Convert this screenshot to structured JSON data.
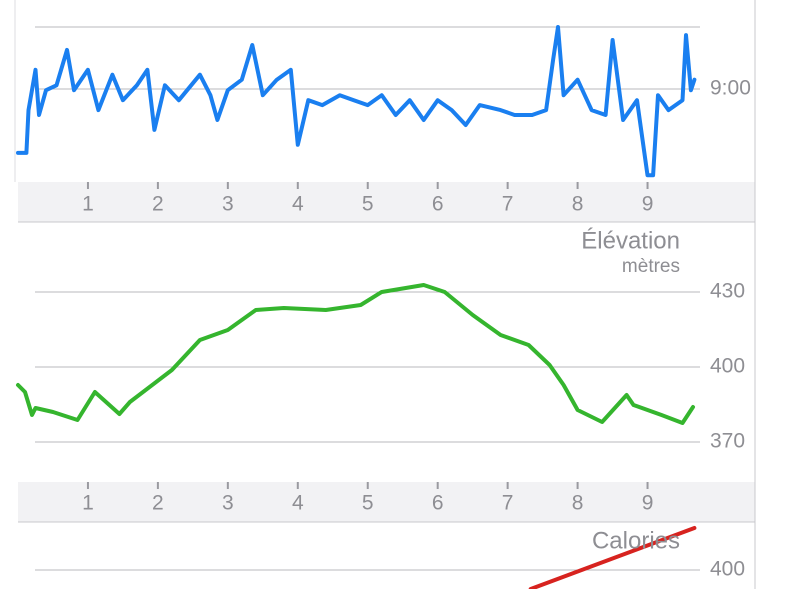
{
  "chart_data": [
    {
      "type": "line",
      "color": "#1a7ff0",
      "xlim": [
        0,
        9.75
      ],
      "xticks": [
        1,
        2,
        3,
        4,
        5,
        6,
        7,
        8,
        9
      ],
      "ylim": [
        10.5,
        8.0
      ],
      "yticks": [
        {
          "value": 9,
          "label": "9:00"
        }
      ],
      "x": [
        0,
        0.12,
        0.15,
        0.25,
        0.3,
        0.4,
        0.55,
        0.7,
        0.8,
        1.0,
        1.15,
        1.35,
        1.5,
        1.7,
        1.85,
        1.95,
        2.1,
        2.3,
        2.6,
        2.75,
        2.85,
        3.0,
        3.2,
        3.35,
        3.5,
        3.7,
        3.9,
        4.0,
        4.15,
        4.35,
        4.6,
        4.8,
        5.0,
        5.2,
        5.4,
        5.6,
        5.8,
        6.0,
        6.2,
        6.4,
        6.6,
        6.9,
        7.1,
        7.35,
        7.55,
        7.65,
        7.72,
        7.8,
        8.0,
        8.2,
        8.4,
        8.5,
        8.65,
        8.85,
        9.0,
        9.08,
        9.15,
        9.3,
        9.5,
        9.55,
        9.62,
        9.67
      ],
      "values": [
        10.03,
        10.03,
        9.34,
        8.69,
        9.42,
        9.02,
        8.94,
        8.37,
        9.02,
        8.69,
        9.34,
        8.77,
        9.18,
        8.94,
        8.69,
        9.66,
        8.94,
        9.18,
        8.77,
        9.1,
        9.5,
        9.02,
        8.85,
        8.29,
        9.1,
        8.85,
        8.69,
        9.9,
        9.18,
        9.26,
        9.1,
        9.18,
        9.26,
        9.1,
        9.42,
        9.18,
        9.5,
        9.18,
        9.34,
        9.58,
        9.26,
        9.34,
        9.42,
        9.42,
        9.34,
        8.53,
        8.0,
        9.1,
        8.85,
        9.34,
        9.42,
        8.21,
        9.5,
        9.18,
        10.39,
        10.39,
        9.1,
        9.34,
        9.18,
        8.13,
        9.02,
        8.85
      ]
    },
    {
      "type": "line",
      "title": "Élévation",
      "subtitle": "mètres",
      "color": "#35b52e",
      "xlim": [
        0,
        9.75
      ],
      "xticks": [
        1,
        2,
        3,
        4,
        5,
        6,
        7,
        8,
        9
      ],
      "ylim": [
        354,
        442
      ],
      "yticks": [
        370,
        400,
        430
      ],
      "x": [
        0,
        0.1,
        0.2,
        0.25,
        0.5,
        0.85,
        1.1,
        1.45,
        1.6,
        2.2,
        2.6,
        3.0,
        3.4,
        3.8,
        4.4,
        4.9,
        5.2,
        5.8,
        6.1,
        6.5,
        6.9,
        7.3,
        7.6,
        7.8,
        8.0,
        8.35,
        8.7,
        8.8,
        9.2,
        9.5,
        9.65
      ],
      "values": [
        392.8,
        390,
        380.8,
        383.6,
        382,
        378.8,
        390,
        381.2,
        386,
        398.8,
        410.8,
        414.8,
        422.8,
        423.6,
        422.8,
        424.8,
        430,
        432.8,
        430,
        420.8,
        412.8,
        408.8,
        400.8,
        392.8,
        382.8,
        378,
        388.8,
        384.8,
        380.8,
        377.6,
        384
      ]
    },
    {
      "type": "line",
      "title": "Calories",
      "color": "#d7231f",
      "xlim": [
        0,
        9.75
      ],
      "ylim": [
        350,
        450
      ],
      "yticks": [
        400
      ],
      "x": [
        7.33,
        9.67
      ],
      "values": [
        380.2,
        443.8
      ]
    }
  ]
}
